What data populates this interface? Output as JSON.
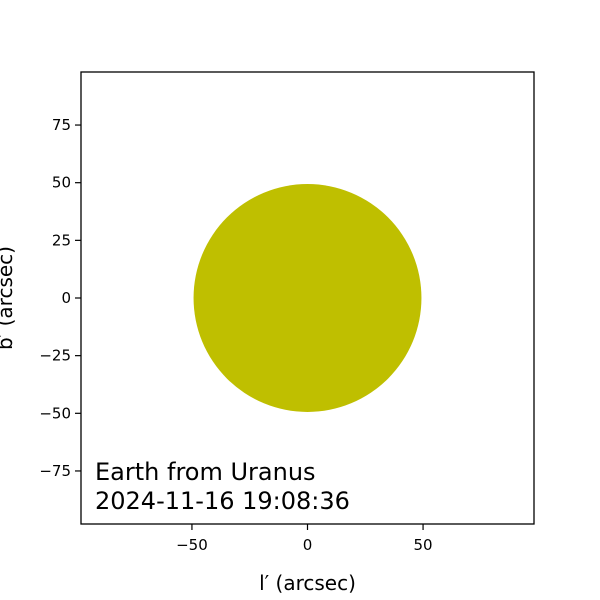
{
  "chart_data": {
    "type": "scatter",
    "title": "",
    "xlabel": "l′ (arcsec)",
    "ylabel": "b′ (arcsec)",
    "xlim": [
      -98,
      98
    ],
    "ylim": [
      -98,
      98
    ],
    "x_ticks": [
      -50,
      0,
      50
    ],
    "x_tick_labels": [
      "−50",
      "0",
      "50"
    ],
    "y_ticks": [
      75,
      50,
      25,
      0,
      -25,
      -50,
      -75
    ],
    "y_tick_labels": [
      "75",
      "50",
      "25",
      "0",
      "−25",
      "−50",
      "−75"
    ],
    "grid": false,
    "disk": {
      "center_x": 0,
      "center_y": 0,
      "radius": 49.3,
      "color": "#bfbf00"
    },
    "annotation_lines": [
      "Earth from Uranus",
      "2024-11-16 19:08:36"
    ]
  }
}
